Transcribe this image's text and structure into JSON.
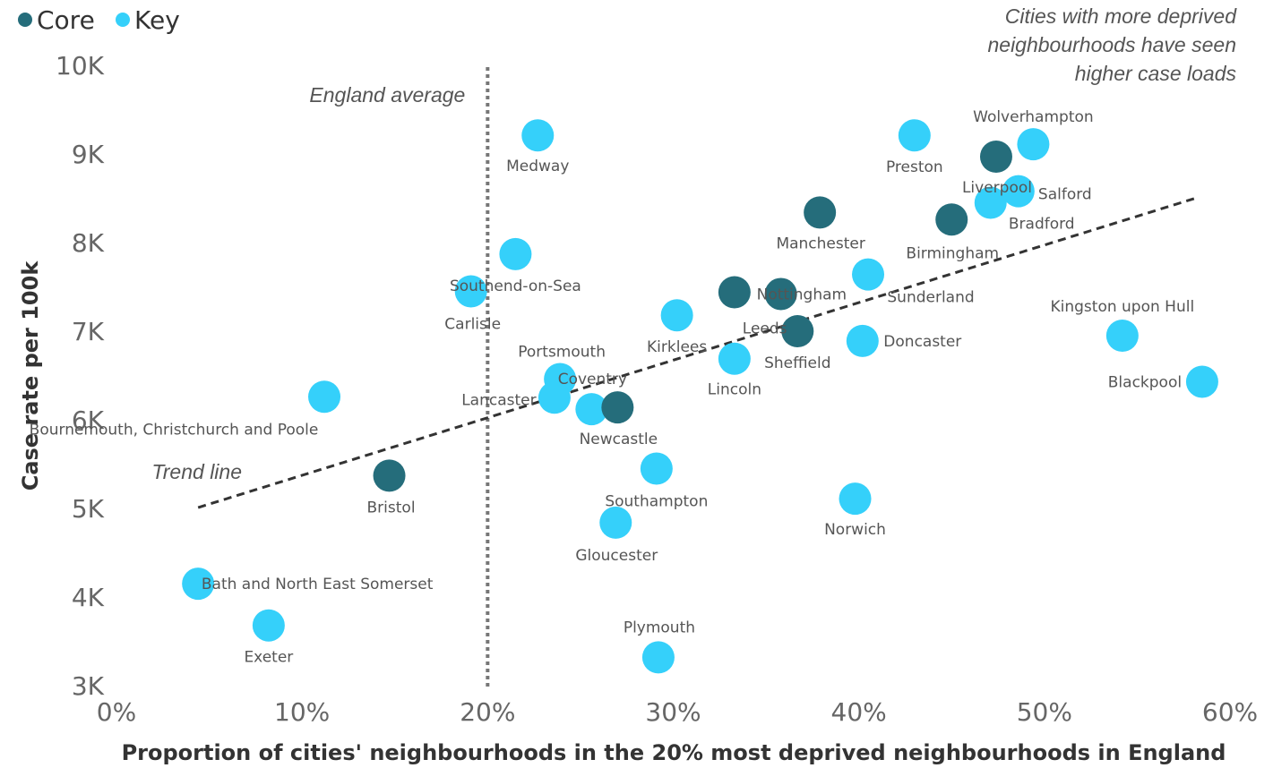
{
  "chart_data": {
    "type": "scatter",
    "xlabel": "Proportion of cities' neighbourhoods in the 20% most deprived neighbourhoods in England",
    "ylabel": "Case rate per 100k",
    "annotations": [
      "Cities with more deprived",
      "neighbourhoods have seen",
      "higher case loads"
    ],
    "reference_line": {
      "label": "England average",
      "x": 20
    },
    "trend": {
      "label": "Trend line",
      "x": [
        4.4,
        58.2
      ],
      "y": [
        5030,
        8525
      ]
    },
    "xlim": [
      0,
      60
    ],
    "xticks": [
      {
        "value": 0,
        "label": "0%"
      },
      {
        "value": 10,
        "label": "10%"
      },
      {
        "value": 20,
        "label": "20%"
      },
      {
        "value": 30,
        "label": "30%"
      },
      {
        "value": 40,
        "label": "40%"
      },
      {
        "value": 50,
        "label": "50%"
      },
      {
        "value": 60,
        "label": "60%"
      }
    ],
    "ylim": [
      3000,
      10000
    ],
    "yticks": [
      {
        "value": 3000,
        "label": "3K"
      },
      {
        "value": 4000,
        "label": "4K"
      },
      {
        "value": 5000,
        "label": "5K"
      },
      {
        "value": 6000,
        "label": "6K"
      },
      {
        "value": 7000,
        "label": "7K"
      },
      {
        "value": 8000,
        "label": "8K"
      },
      {
        "value": 9000,
        "label": "9K"
      },
      {
        "value": 10000,
        "label": "10K"
      }
    ],
    "series": [
      {
        "name": "Core",
        "color": "#256d7b",
        "labels": [
          "Liverpool",
          "Birmingham",
          "Manchester",
          "Nottingham",
          "Leeds",
          "Sheffield",
          "Newcastle",
          "Bristol"
        ],
        "x": [
          47.4,
          45.0,
          37.9,
          33.3,
          35.8,
          36.7,
          27.0,
          14.7
        ],
        "values": [
          8990,
          8280,
          8360,
          7460,
          7440,
          7020,
          6160,
          5390
        ]
      },
      {
        "name": "Key",
        "color": "#35d0fa",
        "labels": [
          "Medway",
          "Preston",
          "Wolverhampton",
          "Salford",
          "Bradford",
          "Southend-on-Sea",
          "Carlisle",
          "Sunderland",
          "Kirklees",
          "Kingston upon Hull",
          "Doncaster",
          "Lincoln",
          "Blackpool",
          "Portsmouth",
          "Lancaster",
          "Coventry",
          "Bournemouth, Christchurch and Poole",
          "Southampton",
          "Norwich",
          "Gloucester",
          "Bath and North East Somerset",
          "Exeter",
          "Plymouth"
        ],
        "x": [
          22.7,
          43.0,
          49.4,
          48.6,
          47.1,
          21.5,
          19.1,
          40.5,
          30.2,
          54.2,
          40.2,
          33.3,
          58.5,
          23.9,
          23.6,
          25.6,
          11.2,
          29.1,
          39.8,
          26.9,
          4.4,
          8.2,
          29.2
        ],
        "values": [
          9230,
          9230,
          9130,
          8600,
          8470,
          7890,
          7470,
          7660,
          7200,
          6970,
          6910,
          6710,
          6450,
          6480,
          6270,
          6140,
          6280,
          5470,
          5130,
          4860,
          4170,
          3700,
          3340
        ]
      }
    ]
  }
}
